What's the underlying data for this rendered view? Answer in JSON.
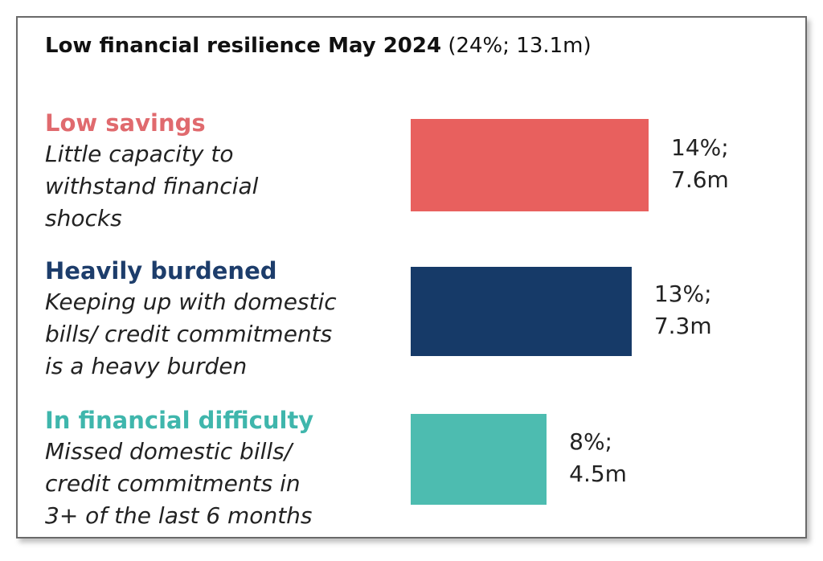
{
  "chart_data": {
    "type": "bar",
    "orientation": "horizontal",
    "title": "Low financial resilience May 2024",
    "title_suffix": "(24%; 13.1m)",
    "xlim": [
      0,
      14
    ],
    "grid": false,
    "categories": [
      {
        "name": "Low savings",
        "description": "Little capacity to\nwithstand financial\nshocks",
        "percent": 14,
        "people_m": 7.6,
        "label": "14%;\n7.6m",
        "color": "#e8605e",
        "label_color": "#e06a6e"
      },
      {
        "name": "Heavily burdened",
        "description": "Keeping up with domestic\nbills/ credit commitments\nis a heavy burden",
        "percent": 13,
        "people_m": 7.3,
        "label": "13%;\n7.3m",
        "color": "#163a68",
        "label_color": "#1d3d6b"
      },
      {
        "name": "In financial difficulty",
        "description": "Missed domestic bills/\ncredit commitments in\n3+ of the last 6 months",
        "percent": 8,
        "people_m": 4.5,
        "label": "8%;\n4.5m",
        "color": "#4dbcb0",
        "label_color": "#3fb6ac"
      }
    ]
  }
}
